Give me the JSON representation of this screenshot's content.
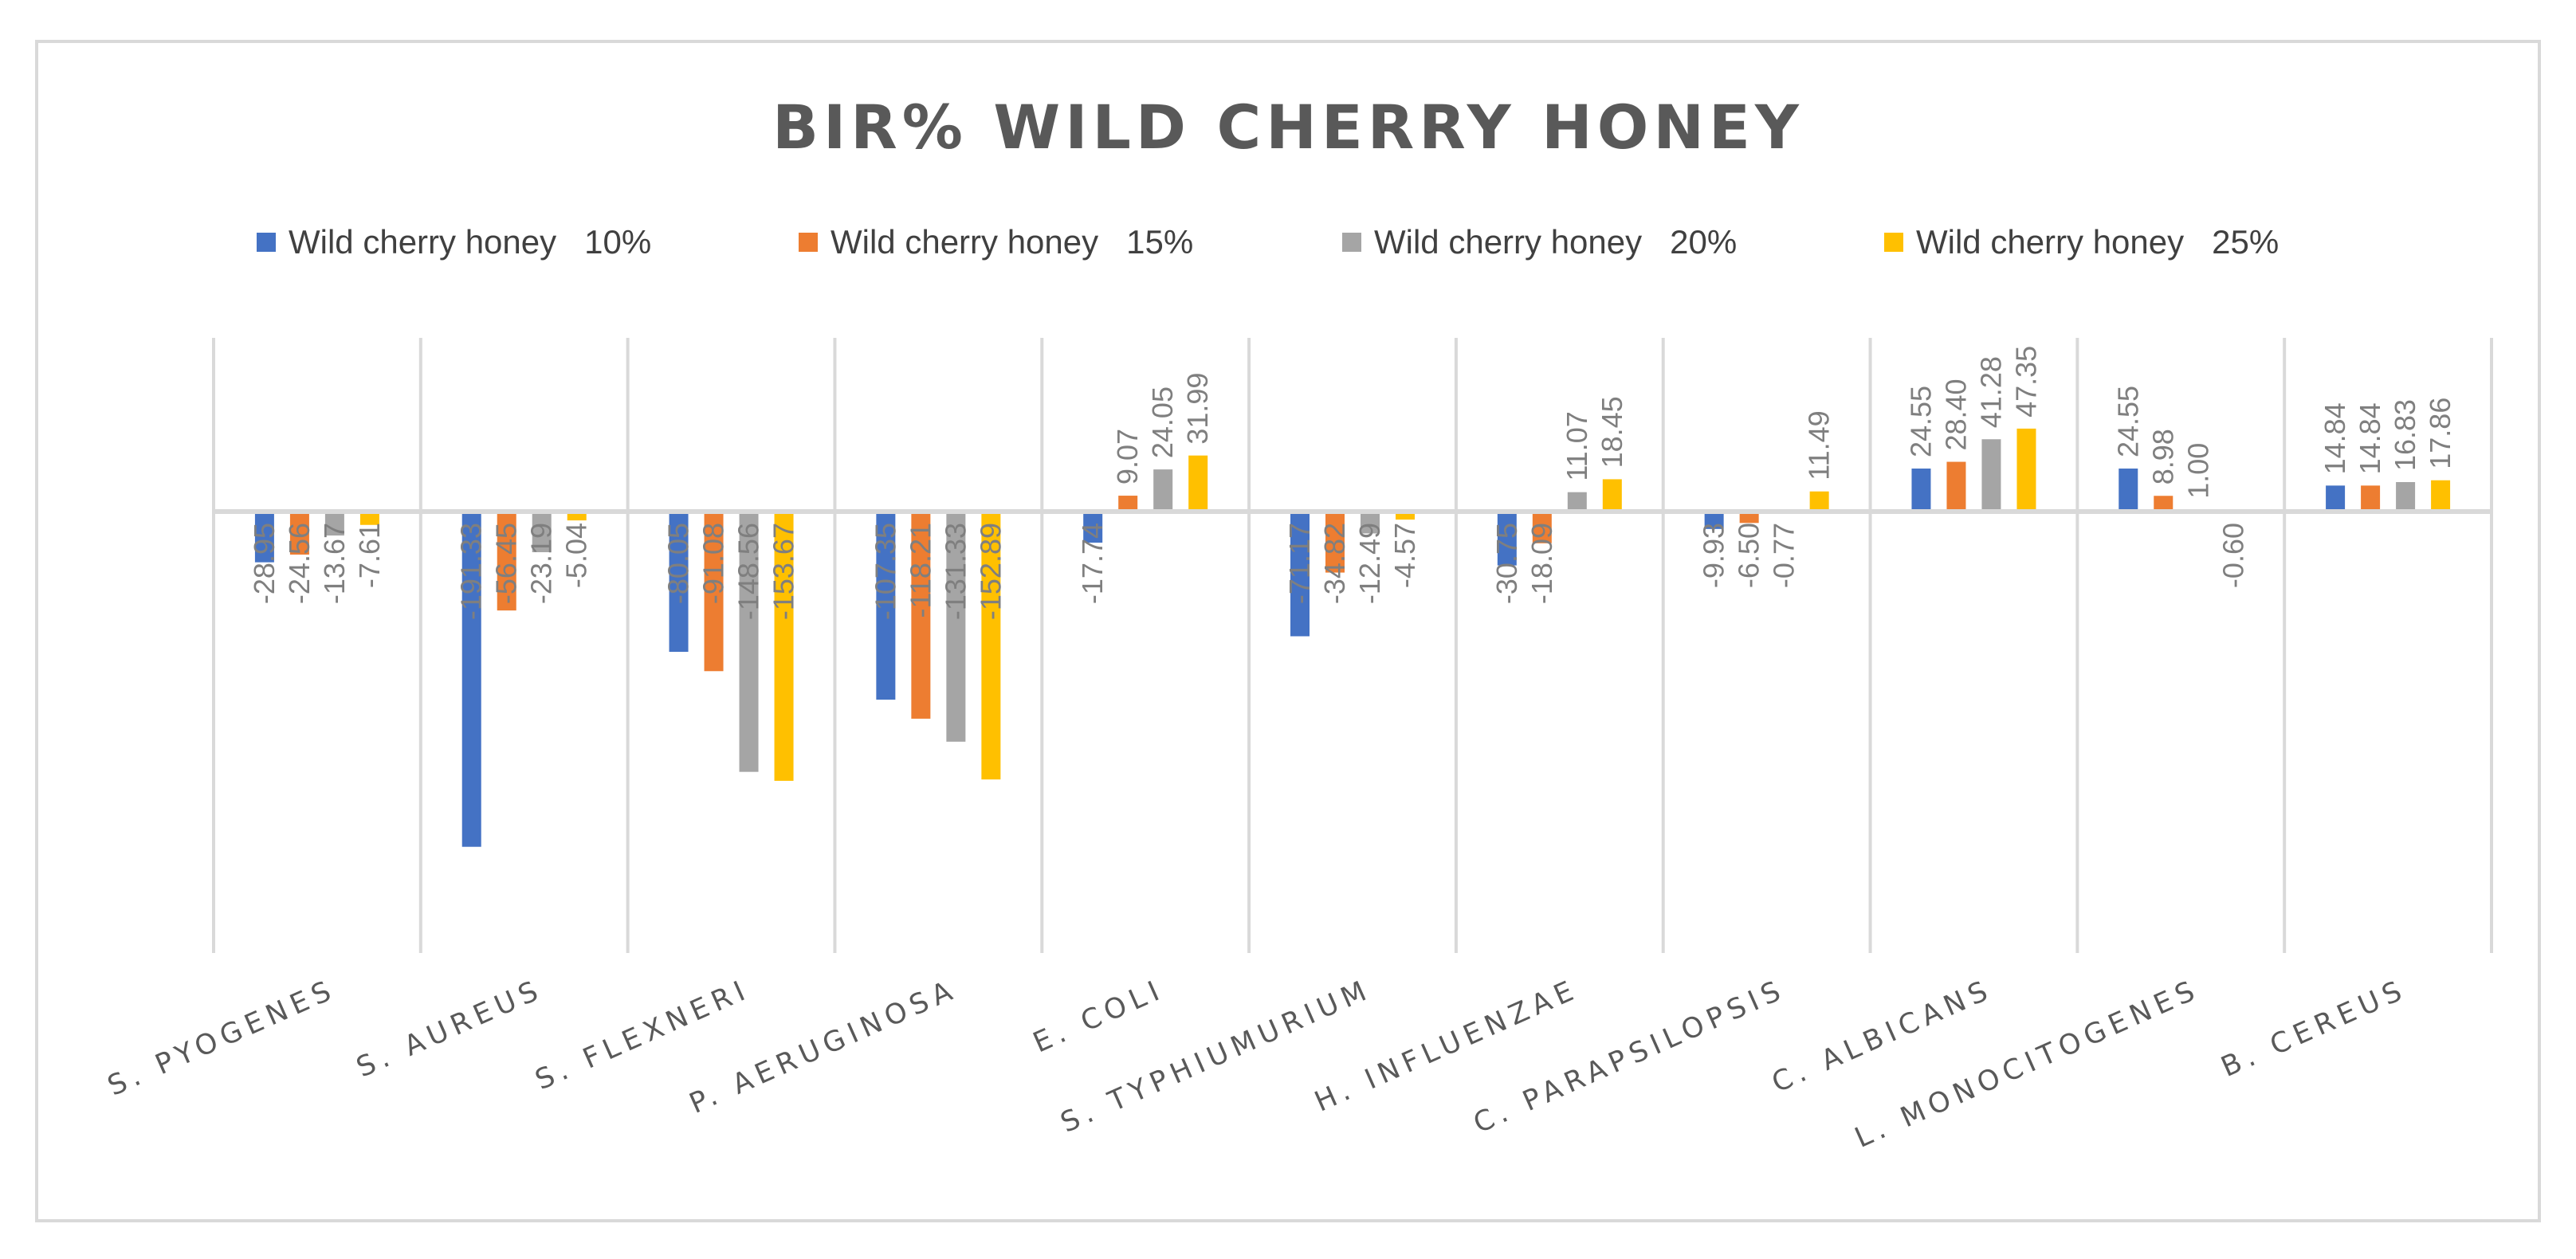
{
  "chart_data": {
    "type": "bar",
    "title": "BIR% WILD CHERRY HONEY",
    "xlabel": "",
    "ylabel": "",
    "ylim": [
      -250,
      100
    ],
    "grid": "vertical category separators",
    "legend_position": "top",
    "categories": [
      "S. PYOGENES",
      "S. AUREUS",
      "S. FLEXNERI",
      "P. AERUGINOSA",
      "E. COLI",
      "S. TYPHIUMURIUM",
      "H. INFLUENZAE",
      "C. PARAPSILOPSIS",
      "C. ALBICANS",
      "L. MONOCITOGENES",
      "B. CEREUS"
    ],
    "series": [
      {
        "name": "Wild cherry honey   10%",
        "color": "#4472c4",
        "values": [
          -28.95,
          -191.33,
          -80.05,
          -107.35,
          -17.74,
          -71.17,
          -30.75,
          -9.93,
          24.55,
          24.55,
          14.84
        ],
        "labels": [
          "-28.95",
          "-191.33",
          "-80.05",
          "-107.35",
          "-17.74",
          "-71.17",
          "-30.75",
          "-9.93",
          "24.55",
          "24.55",
          "14.84"
        ]
      },
      {
        "name": "Wild cherry honey   15%",
        "color": "#ed7d31",
        "values": [
          -24.56,
          -56.45,
          -91.08,
          -118.21,
          9.07,
          -34.82,
          -18.09,
          -6.5,
          28.4,
          8.98,
          14.84
        ],
        "labels": [
          "-24.56",
          "-56.45",
          "-91.08",
          "-118.21",
          "9.07",
          "-34.82",
          "-18.09",
          "-6.50",
          "28.40",
          "8.98",
          "14.84"
        ]
      },
      {
        "name": "Wild cherry honey   20%",
        "color": "#a5a5a5",
        "values": [
          -13.67,
          -23.19,
          -148.56,
          -131.33,
          24.05,
          -12.49,
          11.07,
          -0.77,
          41.28,
          1.0,
          16.83
        ],
        "labels": [
          "-13.67",
          "-23.19",
          "-148.56",
          "-131.33",
          "24.05",
          "-12.49",
          "11.07",
          "-0.77",
          "41.28",
          "1.00",
          "16.83"
        ]
      },
      {
        "name": "Wild cherry honey   25%",
        "color": "#ffc000",
        "values": [
          -7.61,
          -5.04,
          -153.67,
          -152.89,
          31.99,
          -4.57,
          18.45,
          11.49,
          47.35,
          -0.6,
          17.86
        ],
        "labels": [
          "-7.61",
          "-5.04",
          "-153.67",
          "-152.89",
          "31.99",
          "-4.57",
          "18.45",
          "11.49",
          "47.35",
          "-0.60",
          "17.86"
        ]
      }
    ]
  }
}
